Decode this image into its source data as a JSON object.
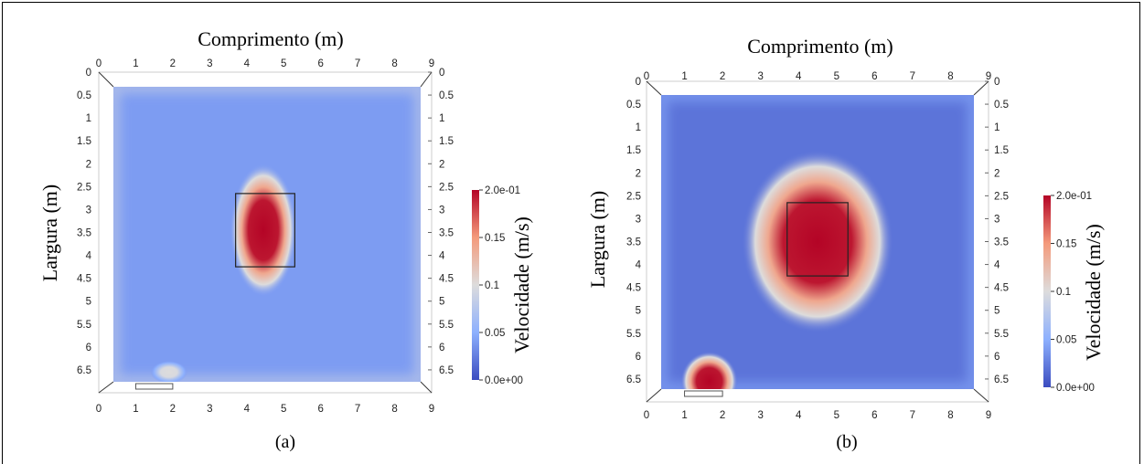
{
  "chart_data": [
    {
      "type": "heatmap",
      "caption": "(a)",
      "xlabel": "Comprimento (m)",
      "ylabel": "Largura (m)",
      "xticks": [
        "0",
        "1",
        "2",
        "3",
        "4",
        "5",
        "6",
        "7",
        "8",
        "9"
      ],
      "yticks": [
        "0",
        "0.5",
        "1",
        "1.5",
        "2",
        "2.5",
        "3",
        "3.5",
        "4",
        "4.5",
        "5",
        "5.5",
        "6",
        "6.5"
      ],
      "xlim": [
        0,
        9
      ],
      "ylim": [
        0,
        7
      ],
      "field_extent": {
        "x": [
          0,
          9
        ],
        "y": [
          0.3,
          6.7
        ]
      },
      "colorbar": {
        "title": "Velocidade (m/s)",
        "range": [
          0,
          0.2
        ],
        "tick_labels": [
          "2.0e-01",
          "0.15",
          "0.1",
          "0.05",
          "0.0e+00"
        ],
        "colors": [
          "#b40426",
          "#f49a7b",
          "#dddcdc",
          "#8db0fe",
          "#3b4cc0"
        ]
      },
      "box": {
        "x": [
          3.7,
          5.3
        ],
        "y": [
          2.65,
          4.25
        ]
      },
      "inlet": {
        "x": [
          1.0,
          2.0
        ],
        "y": [
          6.7,
          6.85
        ]
      },
      "hotspots": [
        {
          "x": 4.45,
          "y": 3.45,
          "rx": 0.9,
          "ry": 1.45,
          "value": 0.2
        },
        {
          "x": 1.9,
          "y": 6.55,
          "rx": 0.5,
          "ry": 0.25,
          "value": 0.1
        }
      ],
      "background_value": 0.04,
      "edge_value": 0.06
    },
    {
      "type": "heatmap",
      "caption": "(b)",
      "xlabel": "Comprimento (m)",
      "ylabel": "Largura (m)",
      "xticks": [
        "0",
        "1",
        "2",
        "3",
        "4",
        "5",
        "6",
        "7",
        "8",
        "9"
      ],
      "yticks": [
        "0",
        "0.5",
        "1",
        "1.5",
        "2",
        "2.5",
        "3",
        "3.5",
        "4",
        "4.5",
        "5",
        "5.5",
        "6",
        "6.5"
      ],
      "xlim": [
        0,
        9
      ],
      "ylim": [
        0,
        7
      ],
      "field_extent": {
        "x": [
          0,
          9
        ],
        "y": [
          0.3,
          6.7
        ]
      },
      "colorbar": {
        "title": "Velocidade (m/s)",
        "range": [
          0,
          0.2
        ],
        "tick_labels": [
          "2.0e-01",
          "0.15",
          "0.1",
          "0.05",
          "0.0e+00"
        ],
        "colors": [
          "#b40426",
          "#f49a7b",
          "#dddcdc",
          "#8db0fe",
          "#3b4cc0"
        ]
      },
      "box": {
        "x": [
          3.7,
          5.3
        ],
        "y": [
          2.65,
          4.25
        ]
      },
      "inlet": {
        "x": [
          1.0,
          2.0
        ],
        "y": [
          6.7,
          6.85
        ]
      },
      "hotspots": [
        {
          "x": 4.5,
          "y": 3.5,
          "rx": 2.0,
          "ry": 2.0,
          "value": 0.2
        },
        {
          "x": 1.65,
          "y": 6.55,
          "rx": 0.75,
          "ry": 0.65,
          "value": 0.2
        }
      ],
      "background_value": 0.02,
      "edge_value": 0.02
    }
  ]
}
